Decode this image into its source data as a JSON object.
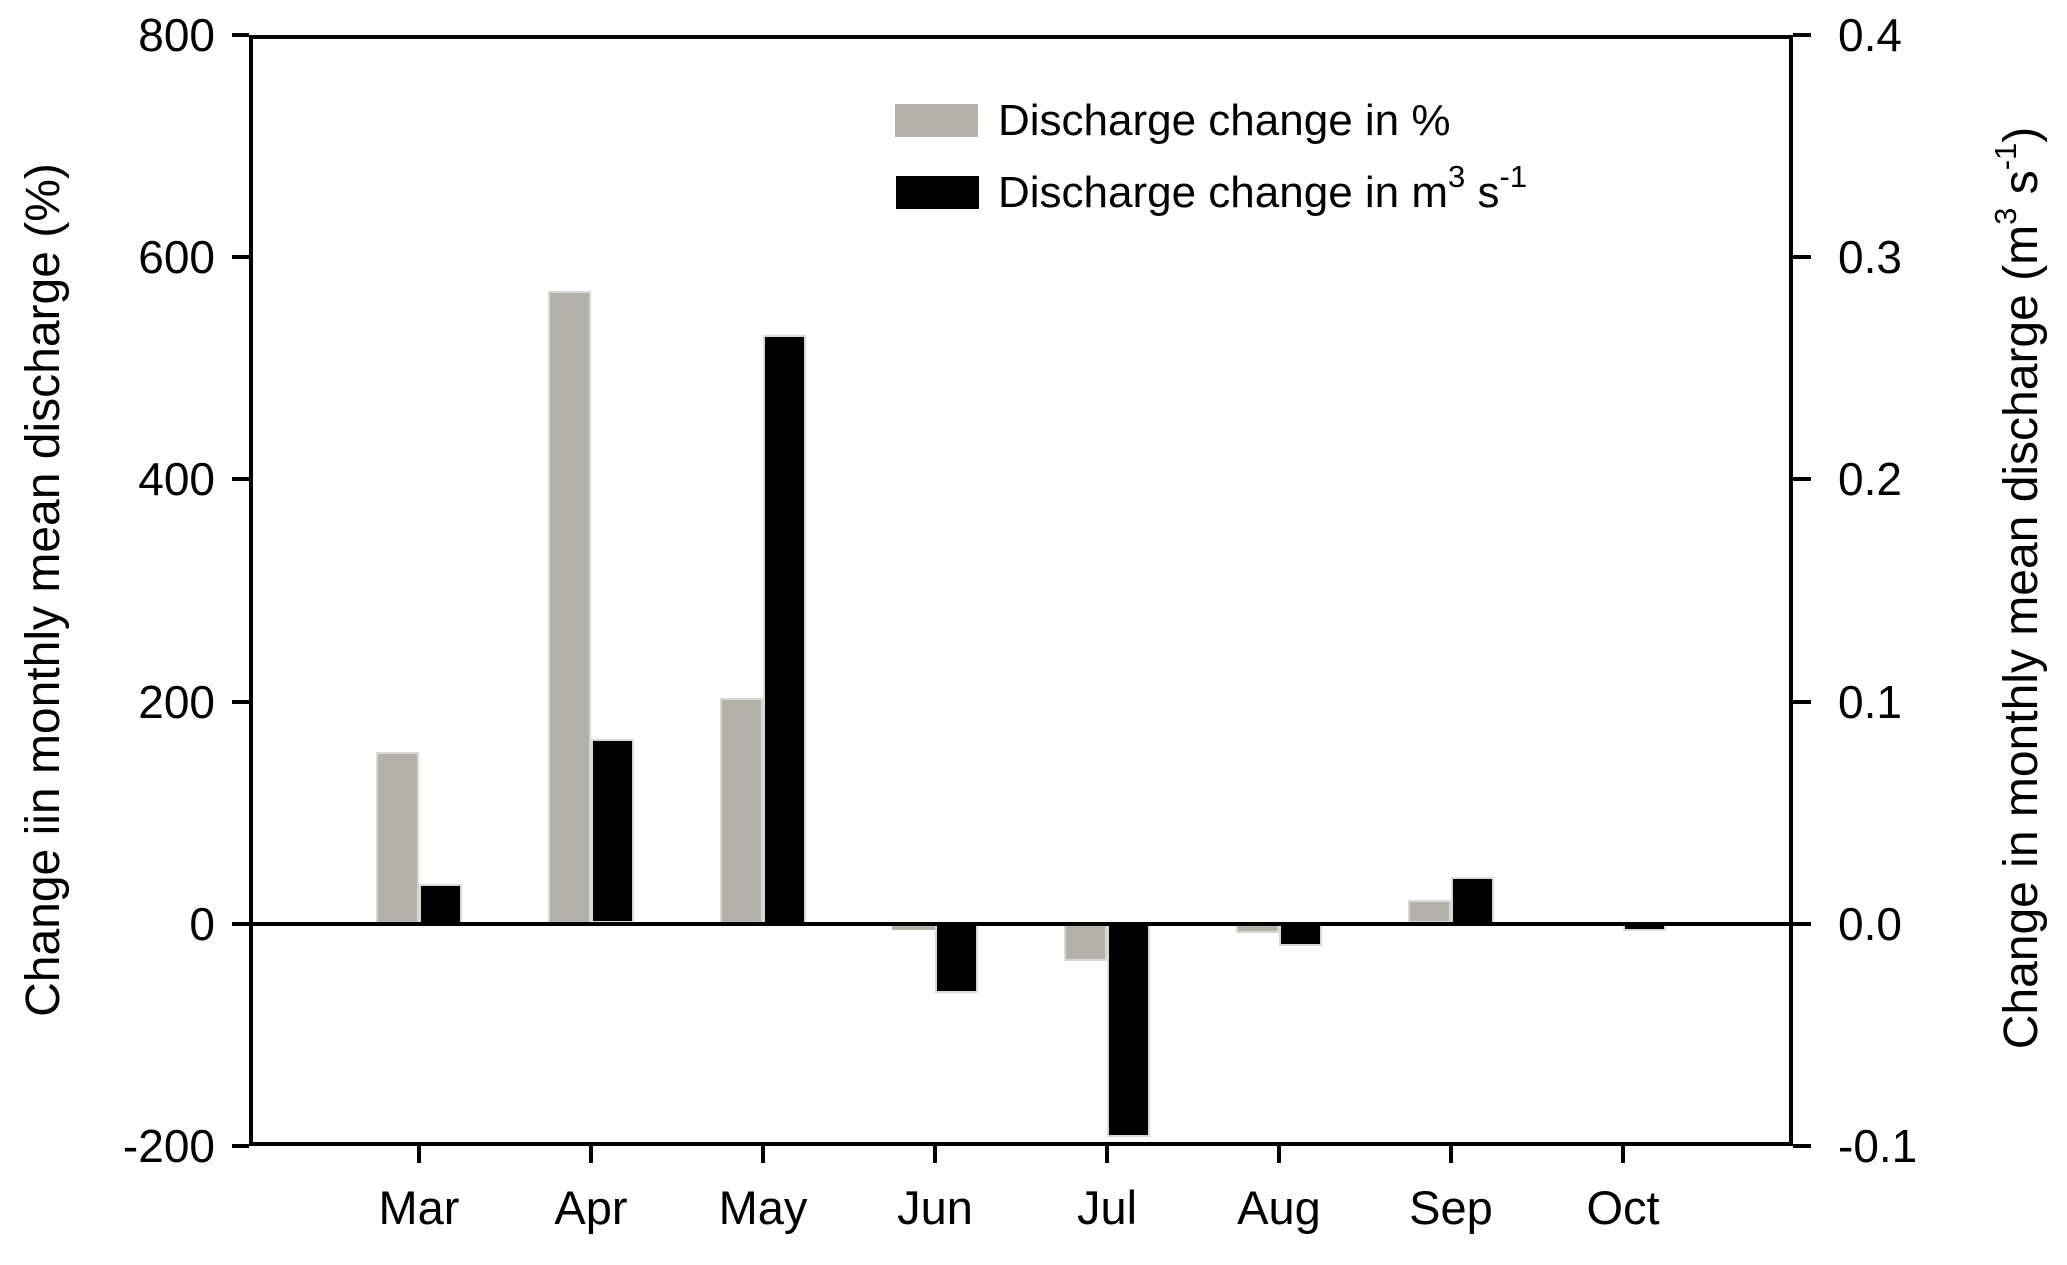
{
  "figure": {
    "background": "#ffffff",
    "frame_color": "#000000"
  },
  "chart_data": {
    "type": "bar",
    "categories": [
      "Mar",
      "Apr",
      "May",
      "Jun",
      "Jul",
      "Aug",
      "Sep",
      "Oct"
    ],
    "series": [
      {
        "name": "Discharge change in %",
        "axis": "left",
        "color": "#b2b2aa",
        "edge_color": "#d8d8d0",
        "values": [
          155,
          570,
          203,
          -5,
          -33,
          -8,
          21,
          -1
        ]
      },
      {
        "name": "Discharge change in m3 s-1",
        "axis": "right",
        "color": "#000000",
        "edge_color": "#d9d9d9",
        "values": [
          0.018,
          0.083,
          0.265,
          -0.031,
          -0.096,
          -0.01,
          0.021,
          -0.003
        ]
      }
    ],
    "axes": {
      "left": {
        "label": "Change iin monthly mean discharge (%)",
        "min": -200,
        "max": 800,
        "ticks": [
          800,
          600,
          400,
          200,
          0,
          -200
        ],
        "tick_labels": [
          "800",
          "600",
          "400",
          "200",
          "0",
          "-200"
        ]
      },
      "right": {
        "label": "Change in monthly mean discharge (m3 s-1)",
        "label_parts": [
          {
            "t": "Change in monthly mean discharge (m"
          },
          {
            "sup": "3"
          },
          {
            "t": " s"
          },
          {
            "sup": "-1"
          },
          {
            "t": ")"
          }
        ],
        "min": -0.1,
        "max": 0.4,
        "ticks": [
          0.4,
          0.3,
          0.2,
          0.1,
          0.0,
          -0.1
        ],
        "tick_labels": [
          "0.4",
          "0.3",
          "0.2",
          "0.1",
          "0.0",
          "-0.1"
        ]
      },
      "x": {
        "tick_labels": [
          "Mar",
          "Apr",
          "May",
          "Jun",
          "Jul",
          "Aug",
          "Sep",
          "Oct"
        ]
      }
    },
    "legend": {
      "position": "top-center-inside",
      "items": [
        {
          "swatch_color": "#b2b2aa",
          "label": "Discharge change in %",
          "label_parts": [
            {
              "t": "Discharge change in %"
            }
          ]
        },
        {
          "swatch_color": "#000000",
          "label": "Discharge change in m3 s-1",
          "label_parts": [
            {
              "t": "Discharge change in m"
            },
            {
              "sup": "3"
            },
            {
              "t": " s"
            },
            {
              "sup": "-1"
            }
          ]
        }
      ]
    },
    "grid": false,
    "zero_line": true
  }
}
